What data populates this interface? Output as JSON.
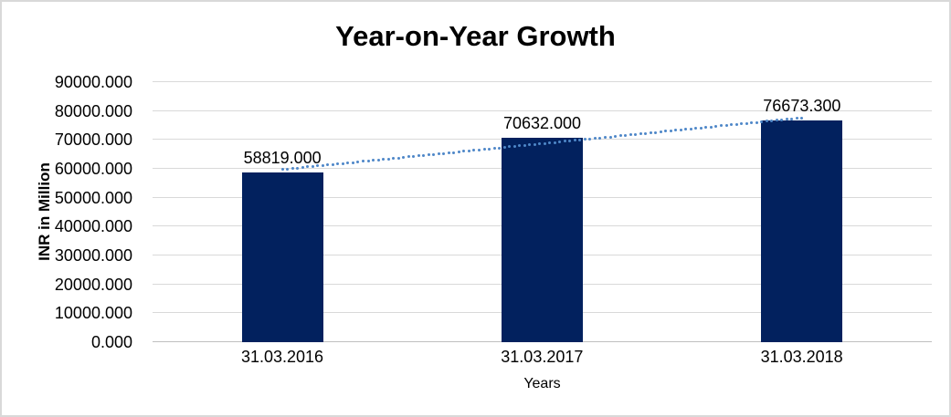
{
  "frame": {
    "background": "#ffffff",
    "border_color": "#d9d9d9"
  },
  "chart_data": {
    "type": "bar",
    "title": "Year-on-Year Growth",
    "xlabel": "Years",
    "ylabel": "INR in Million",
    "categories": [
      "31.03.2016",
      "31.03.2017",
      "31.03.2018"
    ],
    "values": [
      58819.0,
      70632.0,
      76673.3
    ],
    "data_labels": [
      "58819.000",
      "70632.000",
      "76673.300"
    ],
    "ylim": [
      0,
      90000
    ],
    "y_tick_step": 10000,
    "y_tick_labels": [
      "0.000",
      "10000.000",
      "20000.000",
      "30000.000",
      "40000.000",
      "50000.000",
      "60000.000",
      "70000.000",
      "80000.000",
      "90000.000"
    ],
    "grid": true,
    "legend": "none",
    "bar_color": "#02215e",
    "gridline_color": "#d9d9d9",
    "axis_line_color": "#bfbfbf",
    "label_color": "#000000",
    "trendline": {
      "type": "linear",
      "style": "dotted",
      "color": "#4e87c8"
    }
  }
}
